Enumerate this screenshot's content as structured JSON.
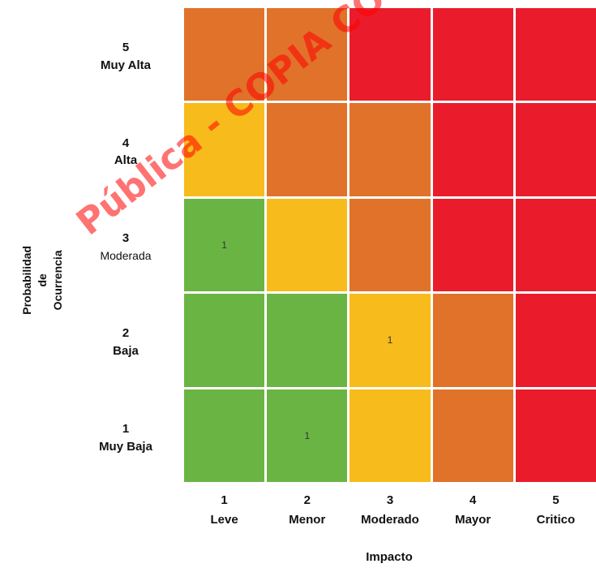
{
  "chart_data": {
    "type": "heatmap",
    "xlabel": "Impacto",
    "ylabel": [
      "Probabilidad",
      "de",
      "Ocurrencia"
    ],
    "x_categories": [
      {
        "num": "1",
        "label": "Leve"
      },
      {
        "num": "2",
        "label": "Menor"
      },
      {
        "num": "3",
        "label": "Moderado"
      },
      {
        "num": "4",
        "label": "Mayor"
      },
      {
        "num": "5",
        "label": "Critico"
      }
    ],
    "y_categories": [
      {
        "num": "5",
        "label": "Muy Alta"
      },
      {
        "num": "4",
        "label": "Alta"
      },
      {
        "num": "3",
        "label": "Moderada"
      },
      {
        "num": "2",
        "label": "Baja"
      },
      {
        "num": "1",
        "label": "Muy Baja"
      }
    ],
    "risk_levels": {
      "G": "#6ab444",
      "Y": "#f7bb1b",
      "O": "#e0722a",
      "R": "#ea1c2b"
    },
    "cell_levels": [
      [
        "O",
        "O",
        "R",
        "R",
        "R"
      ],
      [
        "Y",
        "O",
        "O",
        "R",
        "R"
      ],
      [
        "G",
        "Y",
        "O",
        "R",
        "R"
      ],
      [
        "G",
        "G",
        "Y",
        "O",
        "R"
      ],
      [
        "G",
        "G",
        "Y",
        "O",
        "R"
      ]
    ],
    "cell_values": [
      [
        "",
        "",
        "",
        "",
        ""
      ],
      [
        "",
        "",
        "",
        "",
        ""
      ],
      [
        "1",
        "",
        "",
        "",
        ""
      ],
      [
        "",
        "",
        "1",
        "",
        ""
      ],
      [
        "",
        "1",
        "",
        "",
        ""
      ]
    ]
  },
  "watermark": "Pública - COPIA CO"
}
